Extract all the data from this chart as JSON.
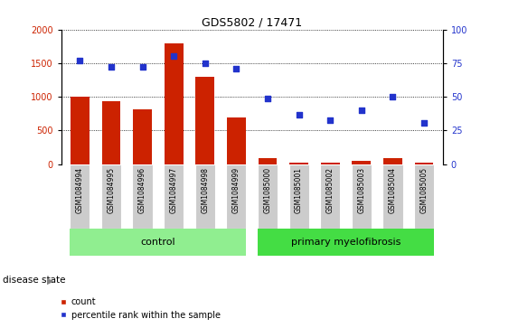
{
  "title": "GDS5802 / 17471",
  "samples": [
    "GSM1084994",
    "GSM1084995",
    "GSM1084996",
    "GSM1084997",
    "GSM1084998",
    "GSM1084999",
    "GSM1085000",
    "GSM1085001",
    "GSM1085002",
    "GSM1085003",
    "GSM1085004",
    "GSM1085005"
  ],
  "counts": [
    1000,
    940,
    820,
    1800,
    1300,
    700,
    85,
    30,
    25,
    45,
    85,
    25
  ],
  "percentiles": [
    77,
    72,
    72,
    80,
    75,
    71,
    49,
    37,
    33,
    40,
    50,
    31
  ],
  "control_indices": [
    0,
    1,
    2,
    3,
    4,
    5
  ],
  "disease_indices": [
    6,
    7,
    8,
    9,
    10,
    11
  ],
  "bar_color": "#cc2200",
  "dot_color": "#2233cc",
  "control_label": "control",
  "disease_label": "primary myelofibrosis",
  "disease_state_label": "disease state",
  "ylim_left": [
    0,
    2000
  ],
  "ylim_right": [
    0,
    100
  ],
  "yticks_left": [
    0,
    500,
    1000,
    1500,
    2000
  ],
  "yticks_right": [
    0,
    25,
    50,
    75,
    100
  ],
  "legend_count": "count",
  "legend_percentile": "percentile rank within the sample",
  "control_color": "#90EE90",
  "disease_color": "#44DD44",
  "label_bg_color": "#cccccc",
  "bar_width": 0.6,
  "figsize": [
    5.63,
    3.63
  ],
  "dpi": 100
}
